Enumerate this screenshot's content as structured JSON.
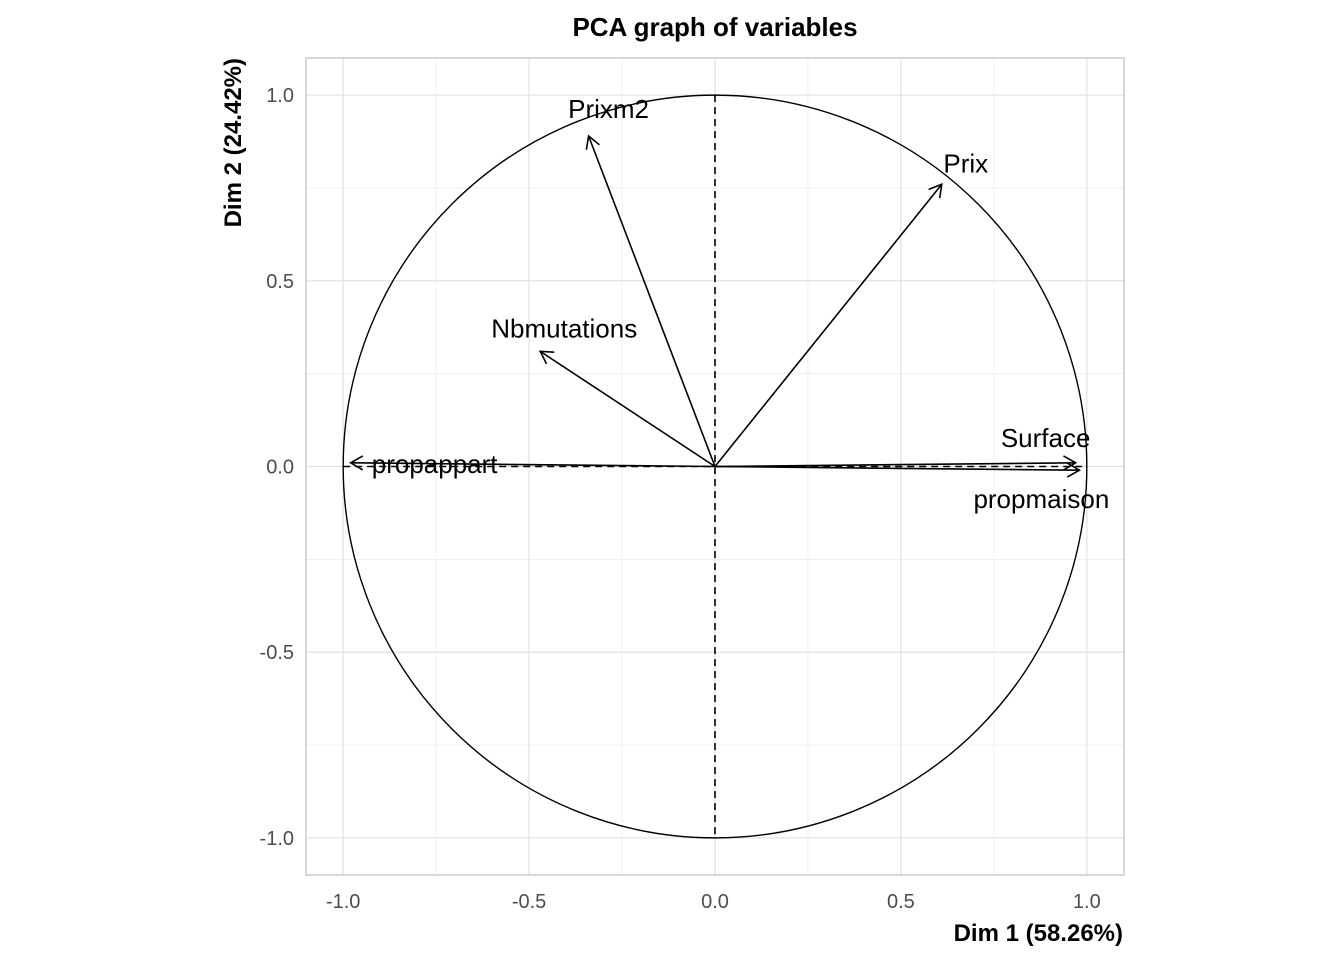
{
  "chart_data": {
    "type": "scatter",
    "title": "PCA graph of variables",
    "xlabel": "Dim 1 (58.26%)",
    "ylabel": "Dim 2 (24.42%)",
    "xlim": [
      -1.1,
      1.1
    ],
    "ylim": [
      -1.1,
      1.1
    ],
    "xticks": [
      -1.0,
      -0.5,
      0.0,
      0.5,
      1.0
    ],
    "yticks": [
      -1.0,
      -0.5,
      0.0,
      0.5,
      1.0
    ],
    "xtick_labels": [
      "-1.0",
      "-0.5",
      "0.0",
      "0.5",
      "1.0"
    ],
    "ytick_labels": [
      "-1.0",
      "-0.5",
      "0.0",
      "0.5",
      "1.0"
    ],
    "grid": true,
    "unit_circle": true,
    "variables": [
      {
        "name": "Prixm2",
        "x": -0.34,
        "y": 0.89
      },
      {
        "name": "Prix",
        "x": 0.61,
        "y": 0.76
      },
      {
        "name": "Nbmutations",
        "x": -0.47,
        "y": 0.31
      },
      {
        "name": "Surface",
        "x": 0.97,
        "y": 0.01
      },
      {
        "name": "propmaison",
        "x": 0.98,
        "y": -0.01
      },
      {
        "name": "propappart",
        "x": -0.98,
        "y": 0.01
      }
    ]
  }
}
